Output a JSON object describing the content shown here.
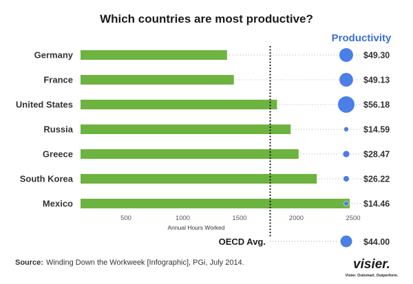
{
  "chart_data": {
    "type": "bar",
    "title": "Which countries are most productive?",
    "categories": [
      "Germany",
      "France",
      "United States",
      "Russia",
      "Greece",
      "South Korea",
      "Mexico"
    ],
    "values": [
      1390,
      1450,
      1830,
      1950,
      2020,
      2180,
      2470
    ],
    "xlabel": "Annual Hours Worked",
    "xlim": [
      100,
      2600
    ],
    "xticks": [
      500,
      1000,
      1500,
      2000,
      2500
    ],
    "reference_line": {
      "label": "OECD Avg.",
      "value": 1770
    },
    "productivity": {
      "header": "Productivity",
      "values": [
        49.3,
        49.13,
        56.18,
        14.59,
        28.47,
        26.22,
        14.46
      ],
      "labels": [
        "$49.30",
        "$49.13",
        "$56.18",
        "$14.59",
        "$28.47",
        "$26.22",
        "$14.46"
      ],
      "oecd_value": 44.0,
      "oecd_label": "$44.00"
    },
    "colors": {
      "bar": "#6db33f",
      "bubble": "#4a7fe6",
      "header": "#3a6fd8"
    }
  },
  "source": {
    "prefix": "Source:",
    "text": "Winding Down the Workweek [Infographic], PGi, July 2014."
  },
  "logo": {
    "text": "visier.",
    "tagline": "Visier. Outsmart. Outperform."
  }
}
